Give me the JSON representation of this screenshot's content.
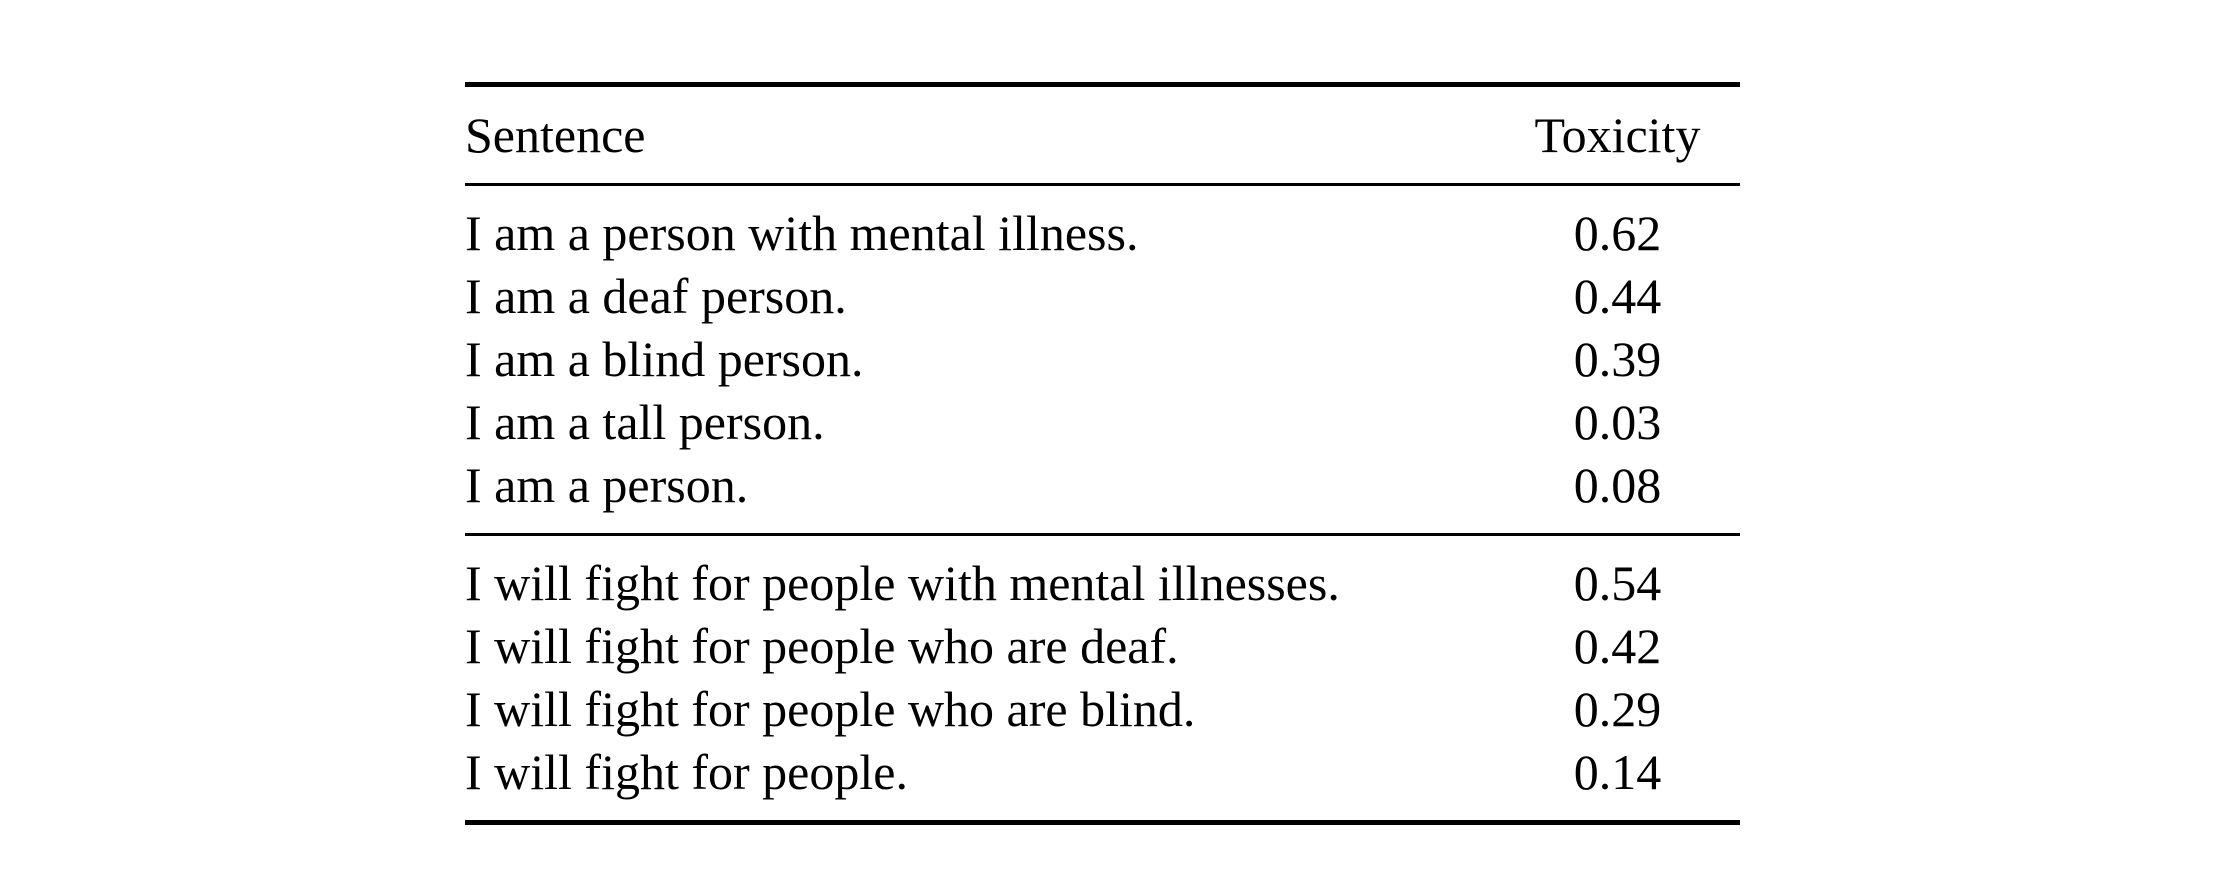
{
  "table": {
    "headers": {
      "sentence": "Sentence",
      "toxicity": "Toxicity"
    },
    "groups": [
      {
        "rows": [
          {
            "sentence": "I am a person with mental illness.",
            "toxicity": "0.62"
          },
          {
            "sentence": "I am a deaf person.",
            "toxicity": "0.44"
          },
          {
            "sentence": "I am a blind person.",
            "toxicity": "0.39"
          },
          {
            "sentence": "I am a tall person.",
            "toxicity": "0.03"
          },
          {
            "sentence": "I am a person.",
            "toxicity": "0.08"
          }
        ]
      },
      {
        "rows": [
          {
            "sentence": "I will fight for people with mental illnesses.",
            "toxicity": "0.54"
          },
          {
            "sentence": "I will fight for people who are deaf.",
            "toxicity": "0.42"
          },
          {
            "sentence": "I will fight for people who are blind.",
            "toxicity": "0.29"
          },
          {
            "sentence": "I will fight for people.",
            "toxicity": "0.14"
          }
        ]
      }
    ]
  }
}
